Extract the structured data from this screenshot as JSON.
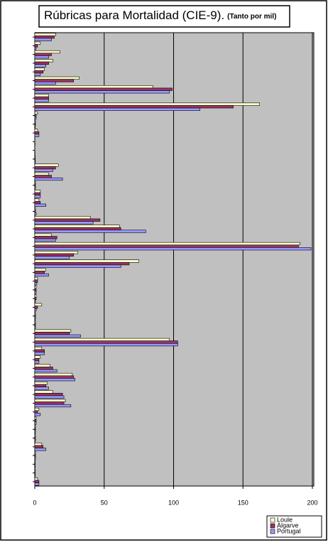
{
  "chart_data": {
    "type": "barh",
    "title": "Rúbricas para Mortalidad (CIE-9).",
    "subtitle": "(Tanto por mil)",
    "categories": [
      null,
      null,
      null,
      null,
      null,
      null,
      null,
      null,
      null,
      null,
      null,
      null,
      null,
      null,
      null,
      null,
      null,
      null,
      null,
      null,
      null,
      null,
      null,
      null,
      null,
      null,
      null,
      null,
      null,
      null,
      null,
      null,
      null,
      null,
      null,
      null,
      null,
      null,
      null,
      null,
      null,
      null,
      null,
      null,
      null,
      null,
      null,
      null,
      null,
      null,
      null,
      null
    ],
    "series": [
      {
        "name": "Loule",
        "color": "#ffffcc",
        "values": [
          15,
          4,
          18,
          13,
          7,
          32,
          85,
          10,
          162,
          2,
          0.5,
          2,
          0,
          0,
          0.3,
          17,
          10,
          0.5,
          4,
          3,
          0.5,
          40,
          61,
          12,
          191,
          31,
          75,
          8,
          2,
          1,
          1,
          5,
          0.5,
          0.5,
          26,
          97,
          5,
          4,
          11,
          27,
          9,
          13,
          22,
          3,
          1,
          0.5,
          0.5,
          5,
          0.5,
          0.3,
          0.3,
          2
        ]
      },
      {
        "name": "Algarve",
        "color": "#993366",
        "values": [
          14,
          2,
          12,
          10,
          6,
          28,
          99,
          10,
          143,
          1,
          0.5,
          3,
          0,
          0,
          0.3,
          15,
          12,
          0.5,
          4,
          4,
          0.5,
          47,
          62,
          16,
          190,
          28,
          68,
          7,
          2,
          1,
          1,
          2,
          0.5,
          0.5,
          25,
          103,
          7,
          3,
          13,
          28,
          8,
          20,
          21,
          2,
          1,
          0.5,
          0.5,
          6,
          0.5,
          0.3,
          0.3,
          3
        ]
      },
      {
        "name": "Portugal",
        "color": "#9999ff",
        "values": [
          12,
          1,
          10,
          8,
          4,
          15,
          97,
          10,
          119,
          1,
          0.3,
          3,
          0.2,
          0.2,
          0.5,
          13,
          20,
          0.5,
          4,
          8,
          1,
          42,
          80,
          15,
          199,
          25,
          62,
          10,
          1.5,
          1,
          0.5,
          1,
          0.5,
          0.5,
          33,
          103,
          7,
          3,
          16,
          29,
          10,
          21,
          26,
          4,
          1,
          0.5,
          0.5,
          8,
          0.5,
          0.3,
          0.3,
          3
        ]
      }
    ],
    "xlim": [
      0,
      200
    ],
    "xticks": [
      0,
      50,
      100,
      150,
      200
    ],
    "grid": true,
    "legend": "lower right",
    "plot_background": "#c0c0c0"
  }
}
